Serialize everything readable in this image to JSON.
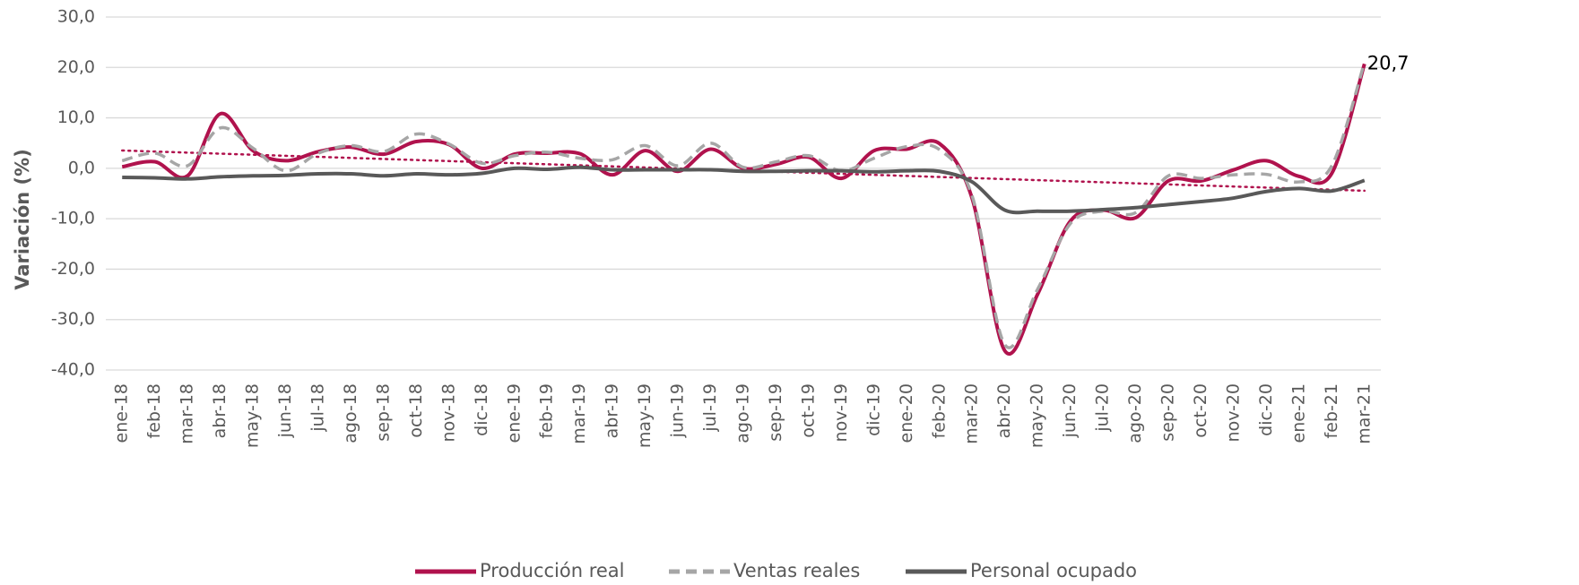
{
  "chart_data": {
    "type": "line",
    "y_label": "Variación (%)",
    "categories": [
      "ene-18",
      "feb-18",
      "mar-18",
      "abr-18",
      "may-18",
      "jun-18",
      "jul-18",
      "ago-18",
      "sep-18",
      "oct-18",
      "nov-18",
      "dic-18",
      "ene-19",
      "feb-19",
      "mar-19",
      "abr-19",
      "may-19",
      "jun-19",
      "jul-19",
      "ago-19",
      "sep-19",
      "oct-19",
      "nov-19",
      "dic-19",
      "ene-20",
      "feb-20",
      "mar-20",
      "abr-20",
      "may-20",
      "jun-20",
      "jul-20",
      "ago-20",
      "sep-20",
      "oct-20",
      "nov-20",
      "dic-20",
      "ene-21",
      "feb-21",
      "mar-21"
    ],
    "series": [
      {
        "name": "Producción real",
        "color": "#b0124d",
        "dash": "solid",
        "trendline": true,
        "values": [
          0.3,
          1.3,
          -1.5,
          10.8,
          3.5,
          1.5,
          3.3,
          4.2,
          2.8,
          5.3,
          4.7,
          0.0,
          2.8,
          3.0,
          2.9,
          -1.3,
          3.5,
          -0.6,
          3.8,
          0.0,
          0.8,
          2.2,
          -2.0,
          3.5,
          3.8,
          4.9,
          -6.0,
          -36.2,
          -25.0,
          -10.5,
          -8.3,
          -9.8,
          -2.5,
          -2.5,
          -0.3,
          1.5,
          -1.6,
          -1.0,
          20.7
        ],
        "value_labels": [
          null,
          null,
          null,
          null,
          null,
          null,
          null,
          null,
          null,
          null,
          null,
          null,
          null,
          null,
          null,
          null,
          null,
          null,
          null,
          null,
          null,
          null,
          null,
          null,
          null,
          null,
          null,
          null,
          null,
          null,
          null,
          null,
          null,
          null,
          null,
          null,
          null,
          null,
          "20,7"
        ]
      },
      {
        "name": "Ventas reales",
        "color": "#a6a6a6",
        "dash": "dashed",
        "values": [
          1.5,
          3.0,
          0.5,
          8.0,
          4.0,
          -0.5,
          3.0,
          4.5,
          3.3,
          6.8,
          4.8,
          1.0,
          2.5,
          3.2,
          2.0,
          1.7,
          4.5,
          0.5,
          5.0,
          0.2,
          1.3,
          2.5,
          -0.5,
          2.0,
          4.3,
          3.7,
          -5.5,
          -35.0,
          -24.0,
          -11.0,
          -8.5,
          -8.8,
          -1.5,
          -2.0,
          -1.3,
          -1.2,
          -2.7,
          0.5,
          21.0
        ]
      },
      {
        "name": "Personal ocupado",
        "color": "#595959",
        "dash": "solid",
        "values": [
          -1.8,
          -1.9,
          -2.1,
          -1.7,
          -1.5,
          -1.4,
          -1.1,
          -1.1,
          -1.5,
          -1.1,
          -1.3,
          -1.0,
          0.0,
          -0.2,
          0.2,
          -0.3,
          -0.3,
          -0.3,
          -0.3,
          -0.6,
          -0.6,
          -0.5,
          -0.5,
          -0.7,
          -0.5,
          -0.6,
          -2.7,
          -8.3,
          -8.5,
          -8.5,
          -8.2,
          -7.8,
          -7.2,
          -6.6,
          -5.9,
          -4.6,
          -4.0,
          -4.5,
          -2.4
        ]
      }
    ],
    "ylim": [
      -40,
      30
    ],
    "yticks": [
      {
        "value": -40,
        "label": "-40,0"
      },
      {
        "value": -30,
        "label": "-30,0"
      },
      {
        "value": -20,
        "label": "-20,0"
      },
      {
        "value": -10,
        "label": "-10,0"
      },
      {
        "value": 0,
        "label": "0,0"
      },
      {
        "value": 10,
        "label": "10,0"
      },
      {
        "value": 20,
        "label": "20,0"
      },
      {
        "value": 30,
        "label": "30,0"
      }
    ],
    "grid": true,
    "legend": "bottom"
  }
}
